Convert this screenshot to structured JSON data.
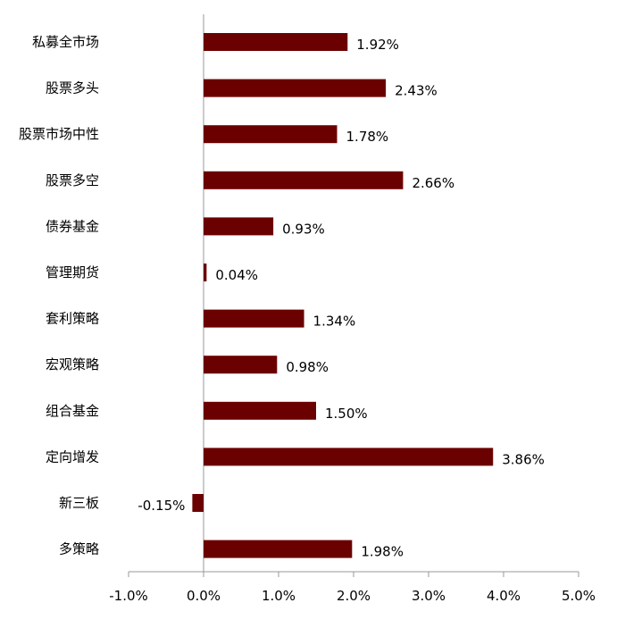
{
  "chart_data": {
    "type": "bar",
    "orientation": "horizontal",
    "title": "",
    "xlabel": "",
    "ylabel": "",
    "categories": [
      "私募全市场",
      "股票多头",
      "股票市场中性",
      "股票多空",
      "债券基金",
      "管理期货",
      "套利策略",
      "宏观策略",
      "组合基金",
      "定向增发",
      "新三板",
      "多策略"
    ],
    "values": [
      1.92,
      2.43,
      1.78,
      2.66,
      0.93,
      0.04,
      1.34,
      0.98,
      1.5,
      3.86,
      -0.15,
      1.98
    ],
    "value_labels": [
      "1.92%",
      "2.43%",
      "1.78%",
      "2.66%",
      "0.93%",
      "0.04%",
      "1.34%",
      "0.98%",
      "1.50%",
      "3.86%",
      "-0.15%",
      "1.98%"
    ],
    "x_ticks": [
      -1.0,
      0.0,
      1.0,
      2.0,
      3.0,
      4.0,
      5.0
    ],
    "x_tick_labels": [
      "-1.0%",
      "0.0%",
      "1.0%",
      "2.0%",
      "3.0%",
      "4.0%",
      "5.0%"
    ],
    "xlim": [
      -1.0,
      5.0
    ],
    "grid": false,
    "legend": "none",
    "bar_color": "#6b0000"
  }
}
